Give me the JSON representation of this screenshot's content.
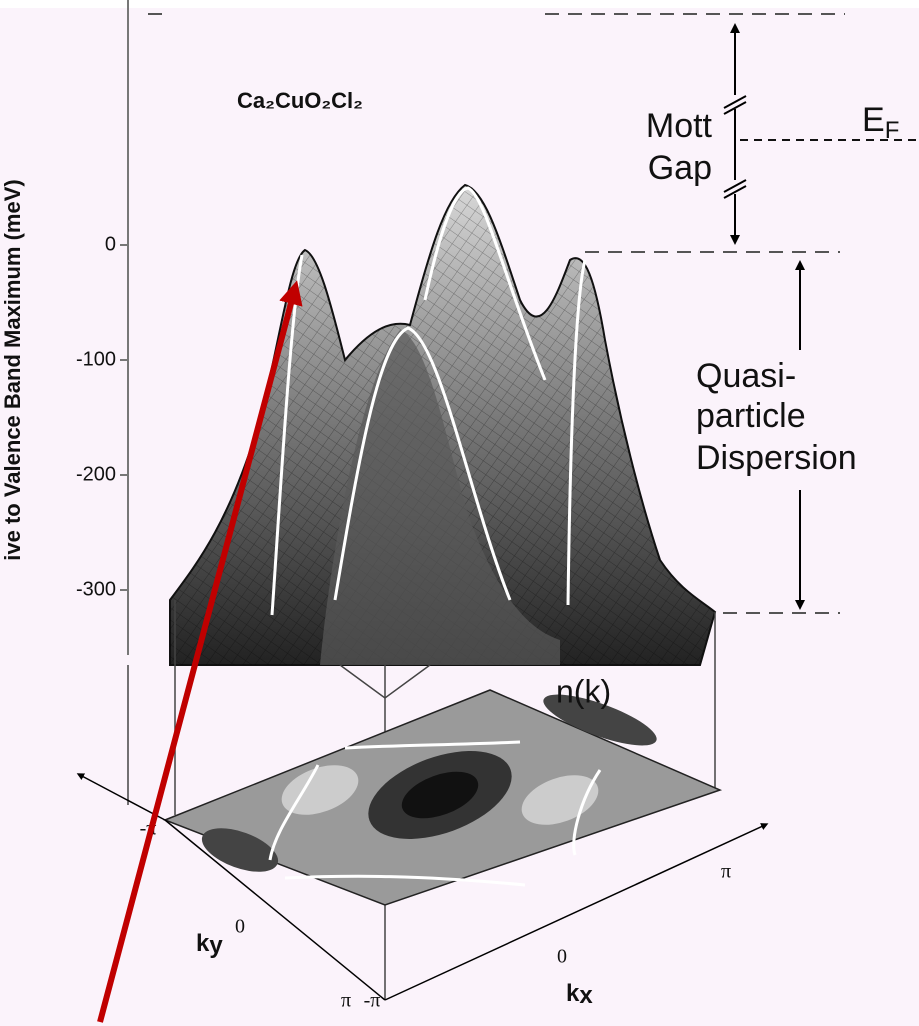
{
  "figure": {
    "formula": "Ca₂CuO₂Cl₂",
    "y_axis": {
      "label": "ive to Valence Band Maximum (meV)",
      "ticks": [
        "0",
        "-100",
        "-200",
        "-300"
      ]
    },
    "mott_gap": [
      "Mott",
      "Gap"
    ],
    "fermi_level": {
      "main": "E",
      "sub": "F"
    },
    "dispersion": [
      "Quasi-",
      "particle",
      "Dispersion"
    ],
    "momentum_distribution": "n(k)",
    "ky_axis": {
      "main": "k",
      "sub": "y",
      "ticks": [
        "-π",
        "0",
        "π"
      ]
    },
    "kx_axis": {
      "main": "k",
      "sub": "x",
      "ticks": [
        "-π",
        "0",
        "π"
      ]
    }
  }
}
